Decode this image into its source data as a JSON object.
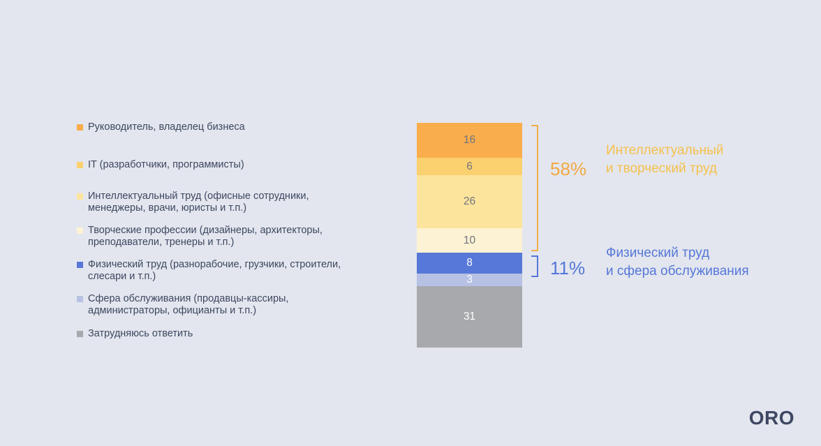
{
  "background_color": "#e3e6ee",
  "text_color": "#3d4760",
  "chart_data": {
    "type": "bar",
    "stacked": true,
    "title": "",
    "total": 100,
    "legend_position": "left",
    "segments": [
      {
        "label": "Руководитель, владелец бизнеса",
        "value": 16,
        "color": "#f9ad4d",
        "value_color": "#6f7380"
      },
      {
        "label": "IT (разработчики, программисты)",
        "value": 6,
        "color": "#fbd06e",
        "value_color": "#6f7380"
      },
      {
        "label": "Интеллектуальный труд (офисные сотрудники, менеджеры, врачи, юристы и т.п.)",
        "value": 26,
        "color": "#fce49c",
        "value_color": "#6f7380"
      },
      {
        "label": "Творческие профессии (дизайнеры, архитекторы, преподаватели, тренеры и т.п.)",
        "value": 10,
        "color": "#fdf2d3",
        "value_color": "#6f7380"
      },
      {
        "label": "Физический труд (разнорабочие, грузчики, строители, слесари и т.п.)",
        "value": 8,
        "color": "#5778d8",
        "value_color": "#ffffff"
      },
      {
        "label": "Сфера обслуживания (продавцы-кассиры, администраторы, официанты и т.п.)",
        "value": 3,
        "color": "#b6c1e4",
        "value_color": "#ffffff"
      },
      {
        "label": "Затрудняюсь ответить",
        "value": 31,
        "color": "#a7a9ac",
        "value_color": "#ffffff"
      }
    ],
    "groups": [
      {
        "percent": "58%",
        "label_line1": "Интеллектуальный",
        "label_line2": "и творческий труд",
        "percent_color": "#f2a843",
        "label_color": "#f6c04c",
        "bracket_color": "#f3ae49",
        "covers_values": [
          16,
          6,
          26,
          10
        ]
      },
      {
        "percent": "11%",
        "label_line1": "Физический труд",
        "label_line2": "и сфера обслуживания",
        "percent_color": "#5577d8",
        "label_color": "#5577d8",
        "bracket_color": "#5577d8",
        "covers_values": [
          8,
          3
        ]
      }
    ]
  },
  "logo_text": "ORO"
}
